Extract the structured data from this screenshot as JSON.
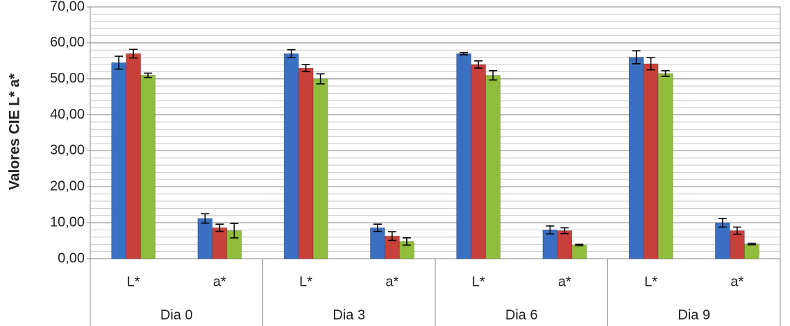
{
  "chart_data": {
    "type": "bar",
    "y_label": "Valores CIE L* a*",
    "categories": [
      "L*",
      "a*",
      "L*",
      "a*",
      "L*",
      "a*",
      "L*",
      "a*"
    ],
    "groups": [
      "Dia 0",
      "Dia 3",
      "Dia 6",
      "Dia 9"
    ],
    "series": [
      {
        "color": "#3b6fc2",
        "values": [
          54.5,
          11.2,
          57,
          8.6,
          57,
          8,
          56,
          10
        ],
        "errors": [
          1.8,
          1.3,
          1.1,
          1,
          0.3,
          1.1,
          1.8,
          1.2
        ]
      },
      {
        "color": "#c9403b",
        "values": [
          57,
          8.6,
          53,
          6.3,
          54,
          7.8,
          54.2,
          7.8
        ],
        "errors": [
          1.2,
          1,
          1,
          1.2,
          1,
          0.8,
          1.7,
          1
        ]
      },
      {
        "color": "#90bd3b",
        "values": [
          51,
          7.8,
          50,
          4.8,
          51,
          3.8,
          51.5,
          4.1
        ],
        "errors": [
          0.6,
          2,
          1.4,
          1,
          1.3,
          0.2,
          0.8,
          0.2
        ]
      }
    ],
    "ylim": [
      0,
      70
    ],
    "yticks": [
      {
        "value": 0,
        "label": "0,00"
      },
      {
        "value": 10,
        "label": "10,00"
      },
      {
        "value": 20,
        "label": "20,00"
      },
      {
        "value": 30,
        "label": "30,00"
      },
      {
        "value": 40,
        "label": "40,00"
      },
      {
        "value": 50,
        "label": "50,00"
      },
      {
        "value": 60,
        "label": "60,00"
      },
      {
        "value": 70,
        "label": "70,00"
      }
    ],
    "grid": true,
    "minor_grid_step": 2
  }
}
